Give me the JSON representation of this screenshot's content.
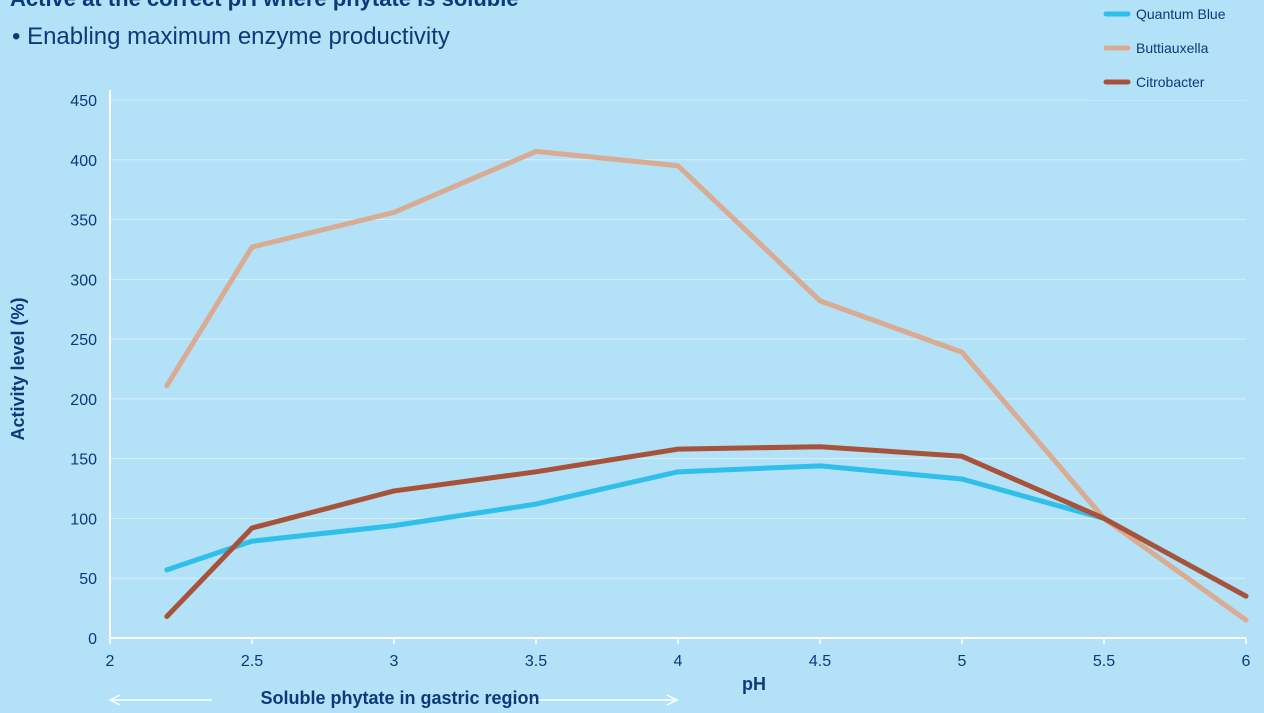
{
  "chart_data": {
    "type": "line",
    "title": "Active at the correct pH where phytate is soluble",
    "subtitle": "• Enabling maximum enzyme productivity",
    "x_label": "pH",
    "y_label": "Activity level (%)",
    "annotation": "Soluble phytate in gastric region",
    "x": [
      2.2,
      2.5,
      3,
      3.5,
      4,
      4.5,
      5,
      5.5,
      6
    ],
    "series": [
      {
        "name": "Quantum Blue",
        "color": "#2fbfeb",
        "values": [
          57,
          81,
          94,
          112,
          139,
          144,
          133,
          100,
          35
        ]
      },
      {
        "name": "Buttiauxella",
        "color": "#d9ab92",
        "values": [
          211,
          327,
          356,
          407,
          395,
          282,
          239,
          100,
          15
        ]
      },
      {
        "name": "Citrobacter",
        "color": "#a6533a",
        "values": [
          18,
          92,
          123,
          139,
          158,
          160,
          152,
          100,
          35
        ]
      }
    ],
    "xlim": [
      2,
      6
    ],
    "xticks": [
      2,
      2.5,
      3,
      3.5,
      4,
      4.5,
      5,
      5.5,
      6
    ],
    "ylim": [
      0,
      450
    ],
    "yticks": [
      0,
      50,
      100,
      150,
      200,
      250,
      300,
      350,
      400,
      450
    ],
    "grid": true,
    "legend": "top-right"
  }
}
